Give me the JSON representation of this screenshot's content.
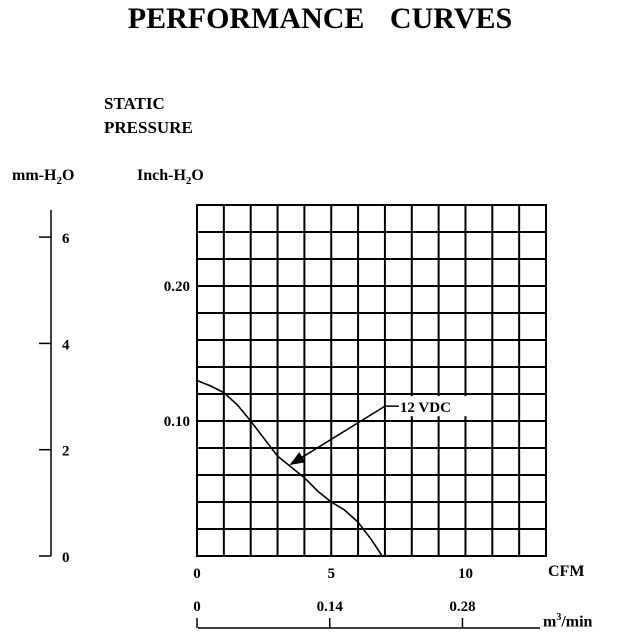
{
  "chart_data": {
    "type": "line",
    "title": "PERFORMANCE CURVES",
    "ylabel_lines": [
      "STATIC",
      "PRESSURE"
    ],
    "ylabel_left_unit": "mm-H",
    "ylabel_right_unit": "Inch-H",
    "unit_sub": "2",
    "unit_suffix": "O",
    "xlabel": "CFM",
    "xlabel_secondary": "m",
    "xlabel_secondary_sup": "3",
    "xlabel_secondary_suffix": "/min",
    "xlim": [
      0,
      13
    ],
    "ylim": [
      0,
      0.26
    ],
    "grid": true,
    "x_grid_step": 1,
    "y_grid_step": 0.02,
    "x_ticks": [
      {
        "value": 0,
        "label": "0"
      },
      {
        "value": 5,
        "label": "5"
      },
      {
        "value": 10,
        "label": "10"
      }
    ],
    "y_ticks": [
      {
        "value": 0.1,
        "label": "0.10"
      },
      {
        "value": 0.2,
        "label": "0.20"
      }
    ],
    "mm_ticks": [
      {
        "value": 0,
        "label": "0"
      },
      {
        "value": 2,
        "label": "2"
      },
      {
        "value": 4,
        "label": "4"
      },
      {
        "value": 6,
        "label": "6"
      }
    ],
    "m3_ticks": [
      {
        "value": 0,
        "label": "0"
      },
      {
        "value": 0.14,
        "label": "0.14"
      },
      {
        "value": 0.28,
        "label": "0.28"
      }
    ],
    "series": [
      {
        "name": "12 VDC",
        "x": [
          0,
          0.5,
          1,
          1.5,
          2,
          2.5,
          3,
          3.5,
          4,
          4.5,
          5,
          5.5,
          6,
          6.5,
          6.9
        ],
        "y": [
          0.13,
          0.126,
          0.121,
          0.112,
          0.1,
          0.087,
          0.074,
          0.066,
          0.058,
          0.048,
          0.04,
          0.034,
          0.025,
          0.012,
          0
        ]
      }
    ],
    "annotation": {
      "text": "12 VDC",
      "arrow_from": [
        7.0,
        0.111
      ],
      "arrow_to": [
        3.5,
        0.068
      ]
    }
  }
}
